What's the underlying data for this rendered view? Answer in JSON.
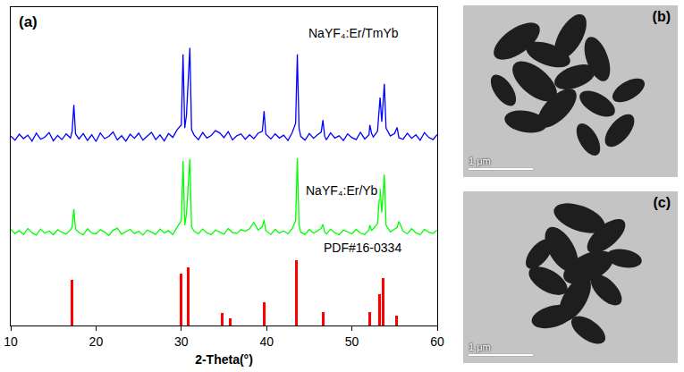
{
  "chart_data": {
    "type": "line",
    "title": "(a)",
    "xlabel": "2-Theta(°)",
    "xlim": [
      10,
      60
    ],
    "xticks": [
      10,
      20,
      30,
      40,
      50,
      60
    ],
    "ylim": [
      0,
      100
    ],
    "tick_labels": "x",
    "grid": false,
    "series": [
      {
        "name": "NaYF₄:Er/TmYb",
        "type": "line",
        "color": "#0000ff",
        "x": [
          10,
          10.5,
          11,
          11.5,
          12,
          12.5,
          13,
          13.5,
          14,
          14.5,
          15,
          15.5,
          16,
          16.5,
          17,
          17.2,
          17.4,
          17.6,
          18,
          18.5,
          19,
          19.5,
          20,
          20.5,
          21,
          21.5,
          22,
          22.5,
          23,
          23.5,
          24,
          24.5,
          25,
          25.5,
          26,
          26.5,
          27,
          27.5,
          28,
          28.5,
          29,
          29.5,
          30,
          30.2,
          30.4,
          30.6,
          31.0,
          31.2,
          31.5,
          32,
          32.5,
          33,
          33.5,
          34,
          34.5,
          35,
          35.5,
          36,
          36.5,
          37,
          37.5,
          38,
          38.5,
          39,
          39.5,
          39.7,
          39.9,
          40.5,
          41,
          41.5,
          42,
          42.5,
          43,
          43.4,
          43.6,
          43.8,
          44,
          44.5,
          45,
          45.5,
          46,
          46.4,
          46.6,
          46.8,
          47,
          47.5,
          48,
          48.5,
          49,
          49.5,
          50,
          50.5,
          51,
          51.5,
          52,
          52.1,
          52.3,
          52.5,
          53,
          53.3,
          53.5,
          53.8,
          54,
          54.5,
          55,
          55.3,
          55.5,
          56,
          56.5,
          57,
          57.5,
          58,
          58.5,
          59,
          59.5,
          60
        ],
        "values": [
          59.5,
          58.2,
          60.1,
          58.7,
          59.8,
          57.9,
          60.4,
          58.5,
          59.2,
          60.6,
          58.0,
          59.7,
          58.4,
          60.2,
          58.9,
          61.0,
          69.3,
          60.2,
          58.6,
          60.3,
          58.1,
          59.9,
          57.8,
          60.5,
          58.7,
          59.4,
          60.8,
          58.3,
          59.6,
          57.9,
          60.1,
          58.8,
          60.4,
          58.2,
          59.5,
          60.7,
          58.4,
          59.9,
          58.0,
          60.3,
          59.1,
          61.5,
          63.0,
          85.2,
          62.0,
          66.0,
          87.2,
          61.5,
          59.8,
          58.4,
          60.6,
          58.9,
          59.7,
          61.2,
          60.5,
          59.0,
          60.9,
          58.3,
          59.6,
          60.2,
          58.5,
          59.9,
          58.7,
          60.4,
          61.0,
          67.3,
          60.1,
          58.6,
          60.2,
          58.9,
          59.8,
          58.1,
          60.6,
          63.5,
          85.2,
          62.0,
          59.4,
          58.2,
          60.3,
          58.8,
          60.0,
          60.8,
          64.5,
          59.5,
          58.3,
          60.5,
          58.9,
          59.6,
          58.1,
          60.2,
          59.0,
          58.4,
          60.7,
          58.6,
          59.9,
          63.0,
          60.4,
          59.2,
          61.0,
          71.6,
          64.0,
          75.9,
          62.0,
          59.5,
          60.3,
          62.2,
          59.0,
          58.5,
          60.4,
          58.8,
          59.9,
          58.2,
          60.6,
          59.1,
          58.4,
          60.0
        ]
      },
      {
        "name": "NaYF₄:Er/Yb",
        "type": "line",
        "color": "#00ff00",
        "x": [
          10,
          10.5,
          11,
          11.5,
          12,
          12.5,
          13,
          13.5,
          14,
          14.5,
          15,
          15.5,
          16,
          16.5,
          17,
          17.2,
          17.4,
          17.6,
          18,
          18.5,
          19,
          19.5,
          20,
          20.5,
          21,
          21.5,
          22,
          22.5,
          23,
          23.5,
          24,
          24.5,
          25,
          25.5,
          26,
          26.5,
          27,
          27.5,
          28,
          28.5,
          29,
          29.5,
          30,
          30.2,
          30.4,
          30.6,
          31.0,
          31.2,
          31.5,
          32,
          32.5,
          33,
          33.5,
          34,
          34.5,
          35,
          35.5,
          36,
          36.5,
          37,
          37.5,
          38,
          38.5,
          39,
          39.5,
          39.7,
          39.9,
          40.5,
          41,
          41.5,
          42,
          42.5,
          43,
          43.4,
          43.6,
          43.8,
          44,
          44.5,
          45,
          45.5,
          46,
          46.4,
          46.6,
          46.8,
          47,
          47.5,
          48,
          48.5,
          49,
          49.5,
          50,
          50.5,
          51,
          51.5,
          52,
          52.1,
          52.3,
          52.5,
          53,
          53.3,
          53.5,
          53.8,
          54,
          54.5,
          55,
          55.3,
          55.5,
          56,
          56.5,
          57,
          57.5,
          58,
          58.5,
          59,
          59.5,
          60
        ],
        "values": [
          30.2,
          28.9,
          29.8,
          28.6,
          30.5,
          29.1,
          28.4,
          30.3,
          29.0,
          29.7,
          28.5,
          30.1,
          29.3,
          28.7,
          30.0,
          31.0,
          36.6,
          30.2,
          29.2,
          28.5,
          30.4,
          29.0,
          28.8,
          30.1,
          29.4,
          28.3,
          29.9,
          30.6,
          28.7,
          29.5,
          30.2,
          28.9,
          29.6,
          28.4,
          30.0,
          29.3,
          28.6,
          30.3,
          29.1,
          29.8,
          28.5,
          30.8,
          33.0,
          51.7,
          31.5,
          35.0,
          52.3,
          31.0,
          29.6,
          28.8,
          30.3,
          29.1,
          28.5,
          30.0,
          29.4,
          28.7,
          30.5,
          29.2,
          28.9,
          30.1,
          29.6,
          30.4,
          32.4,
          30.0,
          31.0,
          33.2,
          29.8,
          28.6,
          30.2,
          29.0,
          29.7,
          28.8,
          30.4,
          33.0,
          52.6,
          31.5,
          29.3,
          28.6,
          30.2,
          29.0,
          29.8,
          30.5,
          31.8,
          29.4,
          28.7,
          30.3,
          29.1,
          28.5,
          30.0,
          29.4,
          28.8,
          30.2,
          29.0,
          28.6,
          30.1,
          31.5,
          29.8,
          30.4,
          32.0,
          43.0,
          35.5,
          47.4,
          31.5,
          29.4,
          30.2,
          30.8,
          32.7,
          29.6,
          28.8,
          30.4,
          29.1,
          28.5,
          30.2,
          29.3,
          28.9,
          30.0
        ]
      },
      {
        "name": "PDF#16-0334",
        "type": "bar",
        "color": "#ff0000",
        "x": [
          17.2,
          30.0,
          30.8,
          34.8,
          35.7,
          39.7,
          43.5,
          46.6,
          52.1,
          53.2,
          53.7,
          55.2
        ],
        "values": [
          14.2,
          16.2,
          18.2,
          4.0,
          2.3,
          7.4,
          20.5,
          4.3,
          4.3,
          9.7,
          15.0,
          3.1
        ]
      }
    ]
  },
  "panels": [
    {
      "label": "(b)",
      "scale_bar": "1 μm"
    },
    {
      "label": "(c)",
      "scale_bar": "1 μm"
    }
  ]
}
